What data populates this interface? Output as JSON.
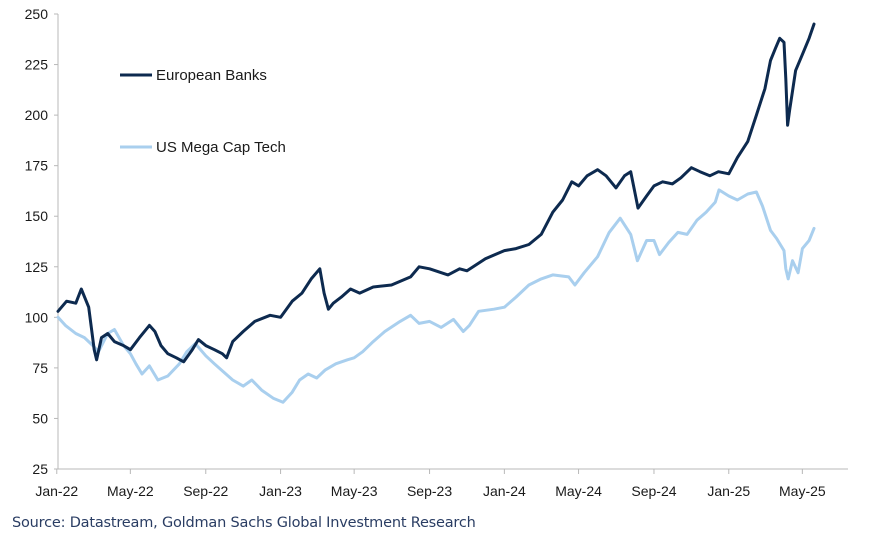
{
  "source": "Source: Datastream, Goldman Sachs Global Investment Research",
  "colors": {
    "european_banks": "#0d2a4f",
    "us_mega_cap_tech": "#a9cfee",
    "axis": "#b8b8b8"
  },
  "chart_data": {
    "type": "line",
    "title": "",
    "xlabel": "",
    "ylabel": "",
    "ylim": [
      25,
      250
    ],
    "yticks": [
      25,
      50,
      75,
      100,
      125,
      150,
      175,
      200,
      225,
      250
    ],
    "xlim": [
      "2022-01-03",
      "2025-05-20"
    ],
    "xticks": [
      {
        "date": "2022-01-01",
        "label": "Jan-22"
      },
      {
        "date": "2022-05-01",
        "label": "May-22"
      },
      {
        "date": "2022-09-01",
        "label": "Sep-22"
      },
      {
        "date": "2023-01-01",
        "label": "Jan-23"
      },
      {
        "date": "2023-05-01",
        "label": "May-23"
      },
      {
        "date": "2023-09-01",
        "label": "Sep-23"
      },
      {
        "date": "2024-01-01",
        "label": "Jan-24"
      },
      {
        "date": "2024-05-01",
        "label": "May-24"
      },
      {
        "date": "2024-09-01",
        "label": "Sep-24"
      },
      {
        "date": "2025-01-01",
        "label": "Jan-25"
      },
      {
        "date": "2025-05-01",
        "label": "May-25"
      }
    ],
    "grid": false,
    "legend_position": "top-left",
    "series": [
      {
        "name": "European Banks",
        "points": [
          [
            "2022-01-03",
            103
          ],
          [
            "2022-01-17",
            108
          ],
          [
            "2022-02-01",
            107
          ],
          [
            "2022-02-10",
            114
          ],
          [
            "2022-02-22",
            105
          ],
          [
            "2022-03-03",
            84
          ],
          [
            "2022-03-07",
            79
          ],
          [
            "2022-03-15",
            90
          ],
          [
            "2022-03-25",
            92
          ],
          [
            "2022-04-05",
            88
          ],
          [
            "2022-04-20",
            86
          ],
          [
            "2022-05-01",
            84
          ],
          [
            "2022-05-16",
            90
          ],
          [
            "2022-06-01",
            96
          ],
          [
            "2022-06-10",
            93
          ],
          [
            "2022-06-20",
            86
          ],
          [
            "2022-07-01",
            82
          ],
          [
            "2022-07-15",
            80
          ],
          [
            "2022-07-27",
            78
          ],
          [
            "2022-08-10",
            84
          ],
          [
            "2022-08-20",
            89
          ],
          [
            "2022-09-01",
            86
          ],
          [
            "2022-09-15",
            84
          ],
          [
            "2022-09-28",
            82
          ],
          [
            "2022-10-05",
            80
          ],
          [
            "2022-10-15",
            88
          ],
          [
            "2022-11-01",
            93
          ],
          [
            "2022-11-20",
            98
          ],
          [
            "2022-12-15",
            101
          ],
          [
            "2023-01-01",
            100
          ],
          [
            "2023-01-20",
            108
          ],
          [
            "2023-02-05",
            112
          ],
          [
            "2023-02-20",
            119
          ],
          [
            "2023-03-06",
            124
          ],
          [
            "2023-03-13",
            112
          ],
          [
            "2023-03-20",
            104
          ],
          [
            "2023-03-28",
            107
          ],
          [
            "2023-04-10",
            110
          ],
          [
            "2023-04-25",
            114
          ],
          [
            "2023-05-10",
            112
          ],
          [
            "2023-06-01",
            115
          ],
          [
            "2023-07-01",
            116
          ],
          [
            "2023-08-01",
            120
          ],
          [
            "2023-08-15",
            125
          ],
          [
            "2023-09-01",
            124
          ],
          [
            "2023-10-01",
            121
          ],
          [
            "2023-10-20",
            124
          ],
          [
            "2023-11-01",
            123
          ],
          [
            "2023-12-01",
            129
          ],
          [
            "2024-01-01",
            133
          ],
          [
            "2024-01-20",
            134
          ],
          [
            "2024-02-10",
            136
          ],
          [
            "2024-03-01",
            141
          ],
          [
            "2024-03-20",
            152
          ],
          [
            "2024-04-05",
            158
          ],
          [
            "2024-04-20",
            167
          ],
          [
            "2024-05-01",
            165
          ],
          [
            "2024-05-15",
            170
          ],
          [
            "2024-06-01",
            173
          ],
          [
            "2024-06-15",
            170
          ],
          [
            "2024-07-01",
            164
          ],
          [
            "2024-07-15",
            170
          ],
          [
            "2024-07-25",
            172
          ],
          [
            "2024-08-02",
            160
          ],
          [
            "2024-08-06",
            154
          ],
          [
            "2024-08-20",
            160
          ],
          [
            "2024-09-01",
            165
          ],
          [
            "2024-09-15",
            167
          ],
          [
            "2024-10-01",
            166
          ],
          [
            "2024-10-15",
            169
          ],
          [
            "2024-11-01",
            174
          ],
          [
            "2024-11-15",
            172
          ],
          [
            "2024-12-01",
            170
          ],
          [
            "2024-12-15",
            172
          ],
          [
            "2025-01-01",
            171
          ],
          [
            "2025-01-15",
            179
          ],
          [
            "2025-02-01",
            187
          ],
          [
            "2025-02-15",
            200
          ],
          [
            "2025-03-01",
            213
          ],
          [
            "2025-03-10",
            227
          ],
          [
            "2025-03-18",
            233
          ],
          [
            "2025-03-25",
            238
          ],
          [
            "2025-04-01",
            236
          ],
          [
            "2025-04-04",
            218
          ],
          [
            "2025-04-07",
            195
          ],
          [
            "2025-04-10",
            202
          ],
          [
            "2025-04-20",
            222
          ],
          [
            "2025-05-01",
            230
          ],
          [
            "2025-05-12",
            238
          ],
          [
            "2025-05-20",
            245
          ]
        ]
      },
      {
        "name": "US Mega Cap Tech",
        "points": [
          [
            "2022-01-03",
            100
          ],
          [
            "2022-01-15",
            96
          ],
          [
            "2022-02-01",
            92
          ],
          [
            "2022-02-15",
            90
          ],
          [
            "2022-03-01",
            86
          ],
          [
            "2022-03-10",
            83
          ],
          [
            "2022-03-25",
            92
          ],
          [
            "2022-04-05",
            94
          ],
          [
            "2022-04-20",
            86
          ],
          [
            "2022-05-01",
            82
          ],
          [
            "2022-05-10",
            77
          ],
          [
            "2022-05-20",
            72
          ],
          [
            "2022-06-01",
            76
          ],
          [
            "2022-06-15",
            69
          ],
          [
            "2022-07-01",
            71
          ],
          [
            "2022-07-20",
            77
          ],
          [
            "2022-08-01",
            83
          ],
          [
            "2022-08-15",
            87
          ],
          [
            "2022-09-01",
            81
          ],
          [
            "2022-09-15",
            77
          ],
          [
            "2022-09-30",
            73
          ],
          [
            "2022-10-15",
            69
          ],
          [
            "2022-11-01",
            66
          ],
          [
            "2022-11-15",
            69
          ],
          [
            "2022-12-01",
            64
          ],
          [
            "2022-12-20",
            60
          ],
          [
            "2023-01-05",
            58
          ],
          [
            "2023-01-20",
            63
          ],
          [
            "2023-02-01",
            69
          ],
          [
            "2023-02-15",
            72
          ],
          [
            "2023-03-01",
            70
          ],
          [
            "2023-03-15",
            74
          ],
          [
            "2023-04-01",
            77
          ],
          [
            "2023-04-20",
            79
          ],
          [
            "2023-05-01",
            80
          ],
          [
            "2023-05-15",
            83
          ],
          [
            "2023-06-01",
            88
          ],
          [
            "2023-06-20",
            93
          ],
          [
            "2023-07-15",
            98
          ],
          [
            "2023-08-01",
            101
          ],
          [
            "2023-08-15",
            97
          ],
          [
            "2023-09-01",
            98
          ],
          [
            "2023-09-20",
            95
          ],
          [
            "2023-10-10",
            99
          ],
          [
            "2023-10-26",
            93
          ],
          [
            "2023-11-05",
            96
          ],
          [
            "2023-11-20",
            103
          ],
          [
            "2023-12-15",
            104
          ],
          [
            "2024-01-01",
            105
          ],
          [
            "2024-01-20",
            110
          ],
          [
            "2024-02-10",
            116
          ],
          [
            "2024-03-01",
            119
          ],
          [
            "2024-03-20",
            121
          ],
          [
            "2024-04-15",
            120
          ],
          [
            "2024-04-25",
            116
          ],
          [
            "2024-05-10",
            122
          ],
          [
            "2024-06-01",
            130
          ],
          [
            "2024-06-20",
            142
          ],
          [
            "2024-07-08",
            149
          ],
          [
            "2024-07-25",
            141
          ],
          [
            "2024-08-05",
            128
          ],
          [
            "2024-08-20",
            138
          ],
          [
            "2024-09-01",
            138
          ],
          [
            "2024-09-10",
            131
          ],
          [
            "2024-09-25",
            137
          ],
          [
            "2024-10-10",
            142
          ],
          [
            "2024-10-25",
            141
          ],
          [
            "2024-11-10",
            148
          ],
          [
            "2024-11-25",
            152
          ],
          [
            "2024-12-10",
            157
          ],
          [
            "2024-12-16",
            163
          ],
          [
            "2025-01-01",
            160
          ],
          [
            "2025-01-15",
            158
          ],
          [
            "2025-02-01",
            161
          ],
          [
            "2025-02-15",
            162
          ],
          [
            "2025-02-25",
            155
          ],
          [
            "2025-03-10",
            143
          ],
          [
            "2025-03-20",
            139
          ],
          [
            "2025-04-01",
            133
          ],
          [
            "2025-04-04",
            124
          ],
          [
            "2025-04-08",
            119
          ],
          [
            "2025-04-15",
            128
          ],
          [
            "2025-04-24",
            122
          ],
          [
            "2025-05-01",
            134
          ],
          [
            "2025-05-12",
            138
          ],
          [
            "2025-05-20",
            144
          ]
        ]
      }
    ]
  }
}
